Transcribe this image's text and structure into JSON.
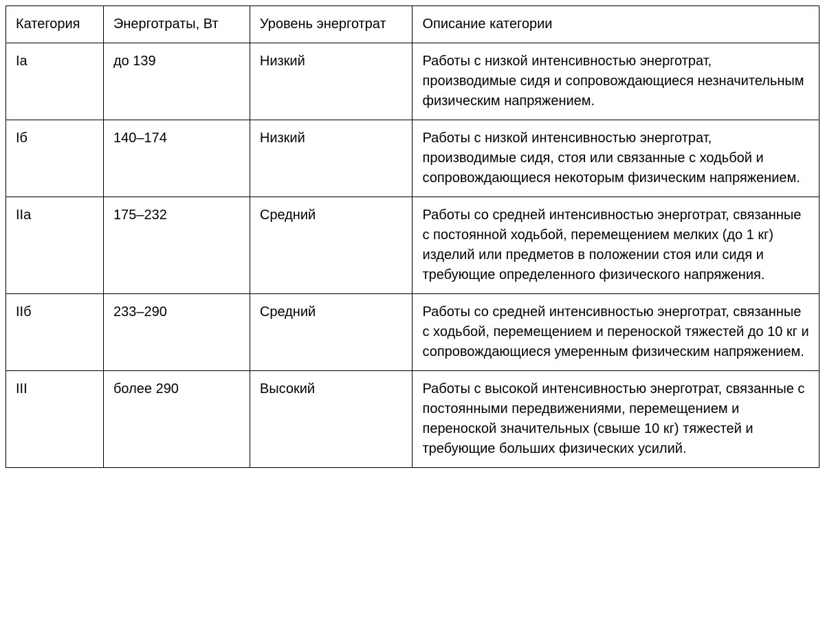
{
  "table": {
    "columns": [
      "Категория",
      "Энерготраты, Вт",
      "Уровень энерготрат",
      "Описание категории"
    ],
    "rows": [
      {
        "category": "Iа",
        "energy": "до 139",
        "level": "Низкий",
        "description": "Работы с низкой интенсивностью энерготрат, производимые сидя и сопровождающиеся незначительным физическим напряжением."
      },
      {
        "category": "Iб",
        "energy": "140–174",
        "level": "Низкий",
        "description": "Работы с низкой интенсивностью энерготрат, производимые сидя, стоя или связанные с ходьбой и сопровождающиеся некоторым физическим напряжением."
      },
      {
        "category": "IIа",
        "energy": "175–232",
        "level": "Средний",
        "description": "Работы со средней интенсивностью энерготрат, связанные с постоянной ходьбой, перемещением мелких (до 1 кг) изделий или предметов в положении стоя или сидя и требующие определенного физического напряжения."
      },
      {
        "category": "IIб",
        "energy": "233–290",
        "level": "Средний",
        "description": "Работы со средней интенсивностью энерготрат, связанные с ходьбой, перемещением и переноской тяжестей до 10 кг и сопровождающиеся умеренным физическим напряжением."
      },
      {
        "category": "III",
        "energy": "более 290",
        "level": "Высокий",
        "description": "Работы с высокой интенсивностью энерготрат, связанные с постоянными передвижениями, перемещением и переноской значительных (свыше 10 кг) тяжестей и требующие больших физических усилий."
      }
    ],
    "border_color": "#000000",
    "background_color": "#ffffff",
    "text_color": "#000000",
    "fontsize": 20,
    "column_widths_pct": [
      12,
      18,
      20,
      50
    ]
  }
}
